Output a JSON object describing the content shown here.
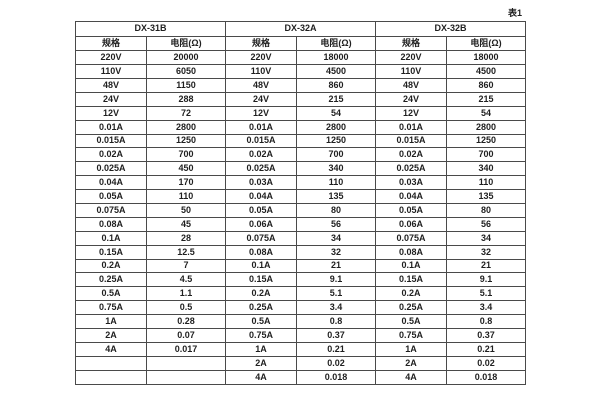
{
  "page": {
    "caption": "表1"
  },
  "table": {
    "sections": [
      {
        "title": "DX-31B",
        "col_headers": [
          "规格",
          "电阻(Ω)"
        ],
        "rows": [
          [
            "220V",
            "20000"
          ],
          [
            "110V",
            "6050"
          ],
          [
            "48V",
            "1150"
          ],
          [
            "24V",
            "288"
          ],
          [
            "12V",
            "72"
          ],
          [
            "0.01A",
            "2800"
          ],
          [
            "0.015A",
            "1250"
          ],
          [
            "0.02A",
            "700"
          ],
          [
            "0.025A",
            "450"
          ],
          [
            "0.04A",
            "170"
          ],
          [
            "0.05A",
            "110"
          ],
          [
            "0.075A",
            "50"
          ],
          [
            "0.08A",
            "45"
          ],
          [
            "0.1A",
            "28"
          ],
          [
            "0.15A",
            "12.5"
          ],
          [
            "0.2A",
            "7"
          ],
          [
            "0.25A",
            "4.5"
          ],
          [
            "0.5A",
            "1.1"
          ],
          [
            "0.75A",
            "0.5"
          ],
          [
            "1A",
            "0.28"
          ],
          [
            "2A",
            "0.07"
          ],
          [
            "4A",
            "0.017"
          ],
          [
            "",
            ""
          ],
          [
            "",
            ""
          ]
        ]
      },
      {
        "title": "DX-32A",
        "col_headers": [
          "规格",
          "电阻(Ω)"
        ],
        "rows": [
          [
            "220V",
            "18000"
          ],
          [
            "110V",
            "4500"
          ],
          [
            "48V",
            "860"
          ],
          [
            "24V",
            "215"
          ],
          [
            "12V",
            "54"
          ],
          [
            "0.01A",
            "2800"
          ],
          [
            "0.015A",
            "1250"
          ],
          [
            "0.02A",
            "700"
          ],
          [
            "0.025A",
            "340"
          ],
          [
            "0.03A",
            "110"
          ],
          [
            "0.04A",
            "135"
          ],
          [
            "0.05A",
            "80"
          ],
          [
            "0.06A",
            "56"
          ],
          [
            "0.075A",
            "34"
          ],
          [
            "0.08A",
            "32"
          ],
          [
            "0.1A",
            "21"
          ],
          [
            "0.15A",
            "9.1"
          ],
          [
            "0.2A",
            "5.1"
          ],
          [
            "0.25A",
            "3.4"
          ],
          [
            "0.5A",
            "0.8"
          ],
          [
            "0.75A",
            "0.37"
          ],
          [
            "1A",
            "0.21"
          ],
          [
            "2A",
            "0.02"
          ],
          [
            "4A",
            "0.018"
          ]
        ]
      },
      {
        "title": "DX-32B",
        "col_headers": [
          "规格",
          "电阻(Ω)"
        ],
        "rows": [
          [
            "220V",
            "18000"
          ],
          [
            "110V",
            "4500"
          ],
          [
            "48V",
            "860"
          ],
          [
            "24V",
            "215"
          ],
          [
            "12V",
            "54"
          ],
          [
            "0.01A",
            "2800"
          ],
          [
            "0.015A",
            "1250"
          ],
          [
            "0.02A",
            "700"
          ],
          [
            "0.025A",
            "340"
          ],
          [
            "0.03A",
            "110"
          ],
          [
            "0.04A",
            "135"
          ],
          [
            "0.05A",
            "80"
          ],
          [
            "0.06A",
            "56"
          ],
          [
            "0.075A",
            "34"
          ],
          [
            "0.08A",
            "32"
          ],
          [
            "0.1A",
            "21"
          ],
          [
            "0.15A",
            "9.1"
          ],
          [
            "0.2A",
            "5.1"
          ],
          [
            "0.25A",
            "3.4"
          ],
          [
            "0.5A",
            "0.8"
          ],
          [
            "0.75A",
            "0.37"
          ],
          [
            "1A",
            "0.21"
          ],
          [
            "2A",
            "0.02"
          ],
          [
            "4A",
            "0.018"
          ]
        ]
      }
    ]
  }
}
